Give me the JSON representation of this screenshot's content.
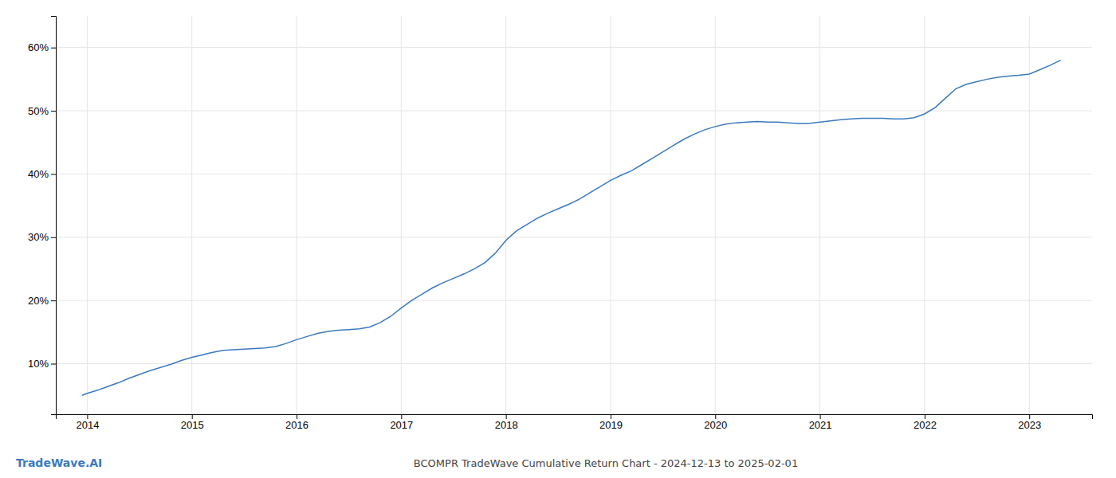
{
  "chart_data": {
    "type": "line",
    "title": "BCOMPR TradeWave Cumulative Return Chart - 2024-12-13 to 2025-02-01",
    "annotations": [
      {
        "text": "TradeWave.AI",
        "color": "#3a7abf"
      }
    ],
    "color": "#3a7abf",
    "x": [
      2013.95,
      2014.0,
      2014.1,
      2014.2,
      2014.3,
      2014.4,
      2014.5,
      2014.6,
      2014.7,
      2014.8,
      2014.9,
      2015.0,
      2015.1,
      2015.2,
      2015.3,
      2015.4,
      2015.5,
      2015.6,
      2015.7,
      2015.8,
      2015.9,
      2016.0,
      2016.1,
      2016.2,
      2016.3,
      2016.4,
      2016.5,
      2016.6,
      2016.7,
      2016.8,
      2016.9,
      2017.0,
      2017.1,
      2017.2,
      2017.3,
      2017.4,
      2017.5,
      2017.6,
      2017.7,
      2017.8,
      2017.9,
      2018.0,
      2018.1,
      2018.2,
      2018.3,
      2018.4,
      2018.5,
      2018.6,
      2018.7,
      2018.8,
      2018.9,
      2019.0,
      2019.1,
      2019.2,
      2019.3,
      2019.4,
      2019.5,
      2019.6,
      2019.7,
      2019.8,
      2019.9,
      2020.0,
      2020.1,
      2020.2,
      2020.3,
      2020.4,
      2020.5,
      2020.6,
      2020.7,
      2020.8,
      2020.9,
      2021.0,
      2021.1,
      2021.2,
      2021.3,
      2021.4,
      2021.5,
      2021.6,
      2021.7,
      2021.8,
      2021.9,
      2022.0,
      2022.1,
      2022.2,
      2022.3,
      2022.4,
      2022.5,
      2022.6,
      2022.7,
      2022.8,
      2022.9,
      2023.0,
      2023.1,
      2023.2,
      2023.3
    ],
    "values": [
      5.0,
      5.3,
      5.8,
      6.4,
      7.0,
      7.7,
      8.3,
      8.9,
      9.4,
      9.9,
      10.5,
      11.0,
      11.4,
      11.8,
      12.1,
      12.2,
      12.3,
      12.4,
      12.5,
      12.7,
      13.2,
      13.8,
      14.3,
      14.8,
      15.1,
      15.3,
      15.4,
      15.5,
      15.8,
      16.5,
      17.5,
      18.8,
      20.0,
      21.0,
      22.0,
      22.8,
      23.5,
      24.2,
      25.0,
      26.0,
      27.5,
      29.5,
      31.0,
      32.0,
      33.0,
      33.8,
      34.5,
      35.2,
      36.0,
      37.0,
      38.0,
      39.0,
      39.8,
      40.5,
      41.5,
      42.5,
      43.5,
      44.5,
      45.5,
      46.3,
      47.0,
      47.5,
      47.9,
      48.1,
      48.2,
      48.3,
      48.2,
      48.2,
      48.1,
      48.0,
      48.0,
      48.2,
      48.4,
      48.6,
      48.7,
      48.8,
      48.8,
      48.8,
      48.7,
      48.7,
      48.9,
      49.5,
      50.5,
      52.0,
      53.5,
      54.2,
      54.6,
      55.0,
      55.3,
      55.5,
      55.6,
      55.8,
      56.5,
      57.2,
      58.0
    ],
    "xlim": [
      2013.7,
      2023.6
    ],
    "ylim": [
      2,
      65
    ],
    "xticks": [
      2014,
      2015,
      2016,
      2017,
      2018,
      2019,
      2020,
      2021,
      2022,
      2023
    ],
    "yticks": [
      {
        "value": 10,
        "label": "10%"
      },
      {
        "value": 20,
        "label": "20%"
      },
      {
        "value": 30,
        "label": "30%"
      },
      {
        "value": 40,
        "label": "40%"
      },
      {
        "value": 50,
        "label": "50%"
      },
      {
        "value": 60,
        "label": "60%"
      }
    ],
    "grid": true
  }
}
